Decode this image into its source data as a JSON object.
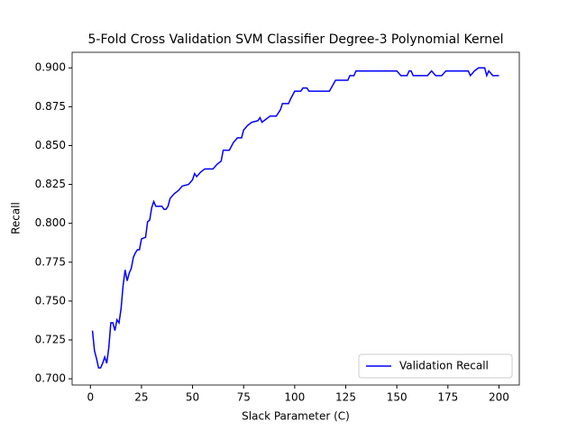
{
  "chart_data": {
    "type": "line",
    "title": "5-Fold Cross Validation SVM Classifier Degree-3 Polynomial Kernel",
    "x_label": "Slack Parameter (C)",
    "y_label": "Recall",
    "x": [
      1,
      2,
      3,
      4,
      5,
      6,
      7,
      8,
      9,
      10,
      11,
      12,
      13,
      14,
      15,
      16,
      17,
      18,
      19,
      20,
      21,
      22,
      23,
      24,
      25,
      27,
      28,
      29,
      30,
      31,
      32,
      35,
      36,
      37,
      38,
      39,
      41,
      43,
      45,
      48,
      50,
      51,
      52,
      54,
      56,
      60,
      62,
      64,
      65,
      68,
      70,
      72,
      74,
      75,
      77,
      79,
      82,
      83,
      84,
      86,
      88,
      91,
      93,
      94,
      97,
      98,
      100,
      103,
      104,
      106,
      107,
      117,
      120,
      126,
      127,
      129,
      130,
      150,
      152,
      155,
      156,
      157,
      158,
      165,
      167,
      169,
      172,
      174,
      185,
      186,
      188,
      190,
      193,
      194,
      195,
      197,
      200
    ],
    "series": [
      {
        "name": "Validation Recall",
        "color": "#0000ff",
        "values": [
          0.731,
          0.718,
          0.713,
          0.707,
          0.707,
          0.71,
          0.714,
          0.71,
          0.72,
          0.736,
          0.736,
          0.731,
          0.738,
          0.736,
          0.745,
          0.76,
          0.77,
          0.763,
          0.768,
          0.771,
          0.778,
          0.781,
          0.783,
          0.783,
          0.79,
          0.791,
          0.801,
          0.802,
          0.81,
          0.814,
          0.811,
          0.811,
          0.809,
          0.809,
          0.811,
          0.816,
          0.819,
          0.821,
          0.824,
          0.825,
          0.828,
          0.832,
          0.83,
          0.833,
          0.835,
          0.835,
          0.838,
          0.84,
          0.847,
          0.847,
          0.852,
          0.855,
          0.855,
          0.86,
          0.863,
          0.865,
          0.866,
          0.868,
          0.865,
          0.867,
          0.869,
          0.869,
          0.873,
          0.877,
          0.877,
          0.88,
          0.885,
          0.885,
          0.887,
          0.887,
          0.885,
          0.885,
          0.892,
          0.892,
          0.895,
          0.895,
          0.898,
          0.898,
          0.895,
          0.895,
          0.898,
          0.898,
          0.895,
          0.895,
          0.898,
          0.895,
          0.895,
          0.898,
          0.898,
          0.895,
          0.898,
          0.9,
          0.9,
          0.895,
          0.898,
          0.895,
          0.895
        ]
      }
    ],
    "xlim": [
      -8.95,
      209.95
    ],
    "ylim": [
      0.696,
      0.91
    ],
    "xticks": [
      0,
      25,
      50,
      75,
      100,
      125,
      150,
      175,
      200
    ],
    "yticks": [
      {
        "value": 0.7,
        "label": "0.700"
      },
      {
        "value": 0.725,
        "label": "0.725"
      },
      {
        "value": 0.75,
        "label": "0.750"
      },
      {
        "value": 0.775,
        "label": "0.775"
      },
      {
        "value": 0.8,
        "label": "0.800"
      },
      {
        "value": 0.825,
        "label": "0.825"
      },
      {
        "value": 0.85,
        "label": "0.850"
      },
      {
        "value": 0.875,
        "label": "0.875"
      },
      {
        "value": 0.9,
        "label": "0.900"
      }
    ],
    "legend": "lower right",
    "grid": false
  }
}
